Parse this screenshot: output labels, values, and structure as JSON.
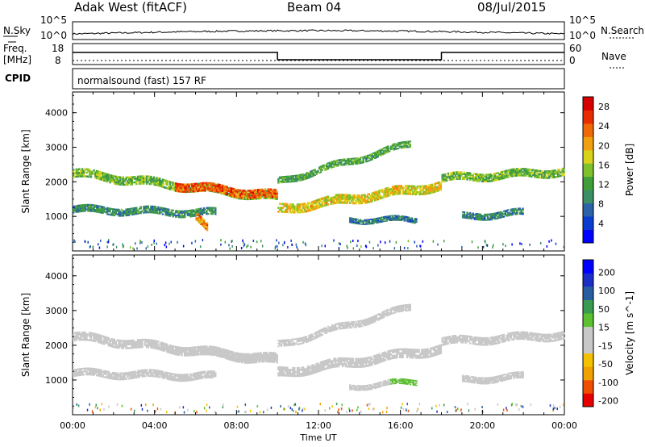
{
  "header": {
    "radar": "Adak West (fitACF)",
    "beam": "Beam 04",
    "date": "08/Jul/2015"
  },
  "strips": {
    "nsky_label": "N.Sky",
    "nsearch_label": "N.Search",
    "noise_ticks": [
      "10^5",
      "10^0"
    ],
    "freq_label": "Freq.",
    "freq_unit": "[MHz]",
    "freq_ticks": [
      "18",
      "8"
    ],
    "nave_label": "Nave",
    "nave_ticks": [
      "60",
      "0"
    ],
    "cpid_label": "CPID",
    "cpid_value": "normalsound (fast) 157 RF"
  },
  "colors": {
    "power": [
      "#0000ff",
      "#0a3ccf",
      "#2b62a8",
      "#3b8f64",
      "#3f9e3a",
      "#7fc12c",
      "#d8d21c",
      "#f0a010",
      "#f06808",
      "#e82c00",
      "#d60000"
    ],
    "velocity": [
      "#e60000",
      "#f04e00",
      "#f0a000",
      "#f2c100",
      "#c8c8c8",
      "#c8c8c8",
      "#5cc030",
      "#3a9a50",
      "#285ea0",
      "#1a2ec8",
      "#0000ff"
    ]
  },
  "chart_data": [
    {
      "type": "heatmap",
      "title": "",
      "ylabel": "Slant Range [km]",
      "xlabel": "",
      "yticks": [
        "1000",
        "2000",
        "3000",
        "4000"
      ],
      "ylim": [
        0,
        4600
      ],
      "xlim": [
        0,
        24
      ],
      "colorbar_label": "Power [dB]",
      "colorbar_ticks": [
        "4",
        "8",
        "12",
        "16",
        "20",
        "24",
        "28"
      ],
      "colorbar_range": [
        0,
        30
      ],
      "bands": [
        {
          "t0": 0.0,
          "t1": 10.0,
          "r_start": 2250,
          "r_end": 1550,
          "width": 260,
          "level": 14
        },
        {
          "t0": 5.0,
          "t1": 10.0,
          "r_start": 1900,
          "r_end": 1600,
          "width": 260,
          "level": 24
        },
        {
          "t0": 0.0,
          "t1": 7.0,
          "r_start": 1200,
          "r_end": 1100,
          "width": 220,
          "level": 10
        },
        {
          "t0": 6.0,
          "t1": 6.6,
          "r_start": 1000,
          "r_end": 600,
          "width": 250,
          "level": 22
        },
        {
          "t0": 10.0,
          "t1": 18.0,
          "r_start": 1200,
          "r_end": 1900,
          "width": 280,
          "level": 18
        },
        {
          "t0": 10.0,
          "t1": 16.5,
          "r_start": 2000,
          "r_end": 3100,
          "width": 200,
          "level": 12
        },
        {
          "t0": 13.5,
          "t1": 16.8,
          "r_start": 900,
          "r_end": 900,
          "width": 160,
          "level": 8
        },
        {
          "t0": 18.0,
          "t1": 24.0,
          "r_start": 2100,
          "r_end": 2300,
          "width": 240,
          "level": 14
        },
        {
          "t0": 19.0,
          "t1": 22.0,
          "r_start": 1000,
          "r_end": 1100,
          "width": 200,
          "level": 9
        }
      ]
    },
    {
      "type": "heatmap",
      "title": "",
      "ylabel": "Slant Range [km]",
      "xlabel": "Time UT",
      "yticks": [
        "1000",
        "2000",
        "3000",
        "4000"
      ],
      "ylim": [
        0,
        4600
      ],
      "xticks": [
        "00:00",
        "04:00",
        "08:00",
        "12:00",
        "16:00",
        "20:00",
        "00:00"
      ],
      "xlim": [
        0,
        24
      ],
      "colorbar_label": "Velocity [m s^-1]",
      "colorbar_ticks": [
        "200",
        "100",
        "50",
        "15",
        "-15",
        "-50",
        "-100",
        "-200"
      ],
      "colorbar_range": [
        -250,
        250
      ],
      "bands": [
        {
          "t0": 0.0,
          "t1": 10.0,
          "r_start": 2250,
          "r_end": 1550,
          "width": 260,
          "level": 0
        },
        {
          "t0": 5.0,
          "t1": 10.0,
          "r_start": 1900,
          "r_end": 1600,
          "width": 260,
          "level": 0
        },
        {
          "t0": 0.0,
          "t1": 7.0,
          "r_start": 1200,
          "r_end": 1100,
          "width": 220,
          "level": 0
        },
        {
          "t0": 10.0,
          "t1": 18.0,
          "r_start": 1200,
          "r_end": 1900,
          "width": 280,
          "level": 0
        },
        {
          "t0": 10.0,
          "t1": 16.5,
          "r_start": 2000,
          "r_end": 3100,
          "width": 200,
          "level": -40
        },
        {
          "t0": 13.5,
          "t1": 15.5,
          "r_start": 800,
          "r_end": 900,
          "width": 160,
          "level": -40
        },
        {
          "t0": 15.5,
          "t1": 16.8,
          "r_start": 900,
          "r_end": 950,
          "width": 160,
          "level": 30
        },
        {
          "t0": 18.0,
          "t1": 24.0,
          "r_start": 2100,
          "r_end": 2300,
          "width": 240,
          "level": 0
        },
        {
          "t0": 19.0,
          "t1": 22.0,
          "r_start": 1000,
          "r_end": 1100,
          "width": 200,
          "level": 0
        }
      ]
    }
  ]
}
